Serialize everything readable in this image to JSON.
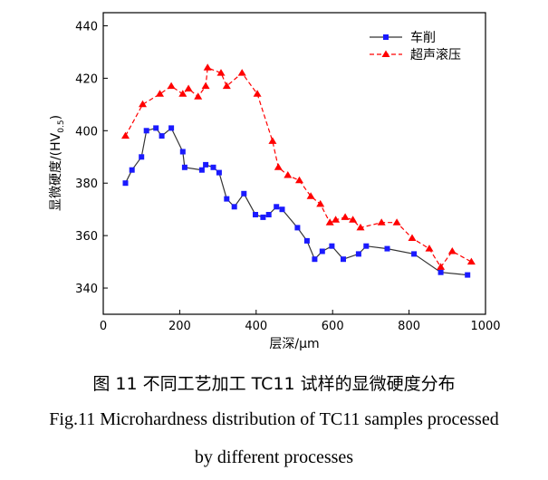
{
  "figure": {
    "caption_zh": "图 11  不同工艺加工 TC11 试样的显微硬度分布",
    "caption_en_line1": "Fig.11 Microhardness distribution of TC11 samples processed",
    "caption_en_line2": "by different processes"
  },
  "chart_data": {
    "type": "line",
    "title": "",
    "xlabel": "层深/μm",
    "ylabel": "显微硬度/(HV0.5)",
    "ylabel_main": "显微硬度/(HV",
    "ylabel_sub": "0.5",
    "ylabel_end": ")",
    "xlim": [
      0,
      1000
    ],
    "ylim": [
      330,
      445
    ],
    "xticks": [
      0,
      200,
      400,
      600,
      800,
      1000
    ],
    "yticks": [
      340,
      360,
      380,
      400,
      420,
      440
    ],
    "grid": false,
    "legend_position": "top-right",
    "series": [
      {
        "name": "车削",
        "color": "#1a1aff",
        "marker": "square",
        "line_style": "solid",
        "line_color": "#333333",
        "x": [
          58,
          75,
          100,
          113,
          138,
          153,
          178,
          208,
          213,
          258,
          268,
          288,
          303,
          323,
          343,
          368,
          398,
          418,
          433,
          453,
          468,
          508,
          533,
          553,
          573,
          598,
          628,
          668,
          688,
          743,
          813,
          883,
          953
        ],
        "y": [
          380,
          385,
          390,
          400,
          401,
          398,
          401,
          392,
          386,
          385,
          387,
          386,
          384,
          374,
          371,
          376,
          368,
          367,
          368,
          371,
          370,
          363,
          358,
          351,
          354,
          356,
          351,
          353,
          356,
          355,
          353,
          346,
          345
        ]
      },
      {
        "name": "超声滚压",
        "color": "#ff0000",
        "marker": "triangle",
        "line_style": "dashed",
        "line_color": "#ff0000",
        "x": [
          58,
          103,
          148,
          178,
          208,
          223,
          248,
          268,
          273,
          308,
          323,
          363,
          403,
          443,
          458,
          483,
          513,
          543,
          568,
          593,
          608,
          633,
          653,
          673,
          728,
          768,
          808,
          853,
          883,
          913,
          963
        ],
        "y": [
          398,
          410,
          414,
          417,
          414,
          416,
          413,
          417,
          424,
          422,
          417,
          422,
          414,
          396,
          386,
          383,
          381,
          375,
          372,
          365,
          366,
          367,
          366,
          363,
          365,
          365,
          359,
          355,
          348,
          354,
          350
        ]
      }
    ]
  }
}
